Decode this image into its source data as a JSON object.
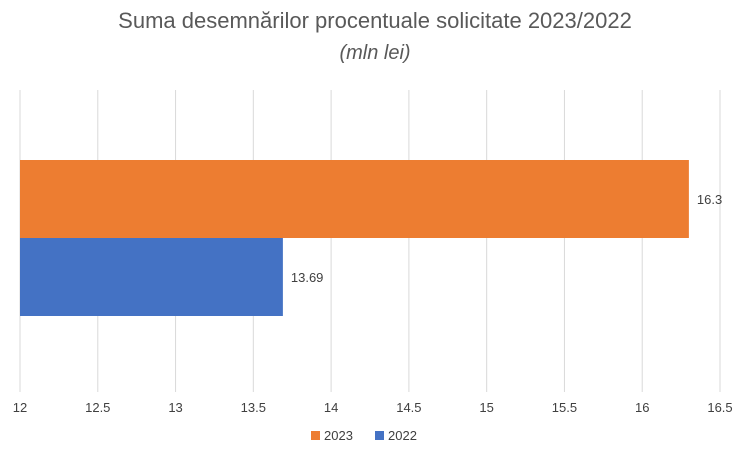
{
  "chart_data": {
    "type": "bar",
    "orientation": "horizontal",
    "title": "Suma desemnărilor procentuale solicitate 2023/2022",
    "subtitle": "(mln lei)",
    "xlabel": "",
    "ylabel": "",
    "xlim": [
      12,
      16.5
    ],
    "x_ticks": [
      "12",
      "12.5",
      "13",
      "13.5",
      "14",
      "14.5",
      "15",
      "15.5",
      "16",
      "16.5"
    ],
    "x_tick_values": [
      12,
      12.5,
      13,
      13.5,
      14,
      14.5,
      15,
      15.5,
      16,
      16.5
    ],
    "grid": true,
    "legend_position": "bottom",
    "series": [
      {
        "name": "2023",
        "value": 16.3,
        "label": "16.3",
        "color": "#ED7D31"
      },
      {
        "name": "2022",
        "value": 13.69,
        "label": "13.69",
        "color": "#4472C4"
      }
    ]
  }
}
